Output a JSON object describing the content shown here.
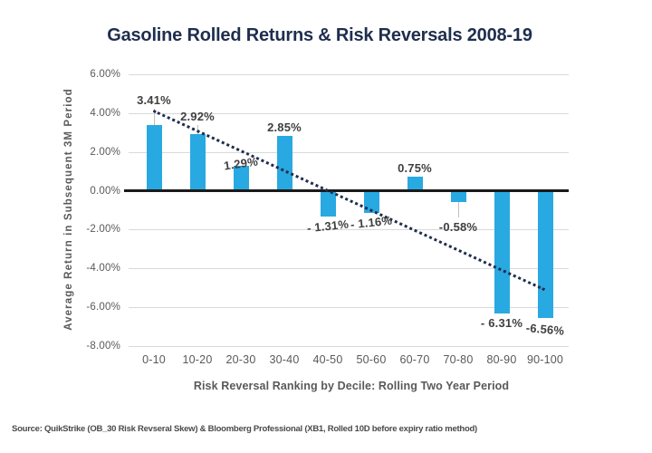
{
  "chart_data": {
    "type": "bar",
    "title": "Gasoline Rolled Returns & Risk Reversals 2008-19",
    "categories": [
      "0-10",
      "10-20",
      "20-30",
      "30-40",
      "40-50",
      "50-60",
      "60-70",
      "70-80",
      "80-90",
      "90-100"
    ],
    "values": [
      3.41,
      2.92,
      1.29,
      2.85,
      -1.31,
      -1.16,
      0.75,
      -0.58,
      -6.31,
      -6.56
    ],
    "bar_labels": [
      "3.41%",
      "2.92%",
      "1.29%",
      "2.85%",
      "- 1.31%",
      "- 1.16%",
      "0.75%",
      "-0.58%",
      "- 6.31%",
      "-6.56%"
    ],
    "xlabel": "Risk Reversal Ranking by Decile: Rolling Two Year Period",
    "ylabel": "Average Return in Subsequent 3M Period",
    "ylim": [
      -8,
      6
    ],
    "yticks": [
      6,
      4,
      2,
      0,
      -2,
      -4,
      -6,
      -8
    ],
    "ytick_labels": [
      "6.00%",
      "4.00%",
      "2.00%",
      "0.00%",
      "-2.00%",
      "-4.00%",
      "-6.00%",
      "-8.00%"
    ],
    "grid": true,
    "legend": false,
    "trendline": {
      "type": "linear-regression",
      "style": "dotted",
      "start_value": 4.16,
      "end_value": -5.05
    },
    "colors": {
      "bar": "#29A9E1",
      "trendline": "#1F2E4E",
      "gridline": "#D9D9D9",
      "zero_line": "#1A1A1A",
      "axis_text": "#595959",
      "data_label": "#3F3F3F",
      "title": "#1F2E4E"
    },
    "label_hints": [
      {
        "leader": 18
      },
      {
        "leader": 10
      },
      {
        "dy": 7,
        "rotate": -8
      },
      {},
      {
        "rotate": -6
      },
      {
        "rotate": -6
      },
      {},
      {
        "leader": 17
      },
      {},
      {
        "dy": 2,
        "rotate": 5
      }
    ]
  },
  "footer": {
    "source": "Source: QuikStrike (OB_30 Risk Revseral Skew) & Bloomberg Professional (XB1, Rolled 10D before expiry ratio method)"
  }
}
